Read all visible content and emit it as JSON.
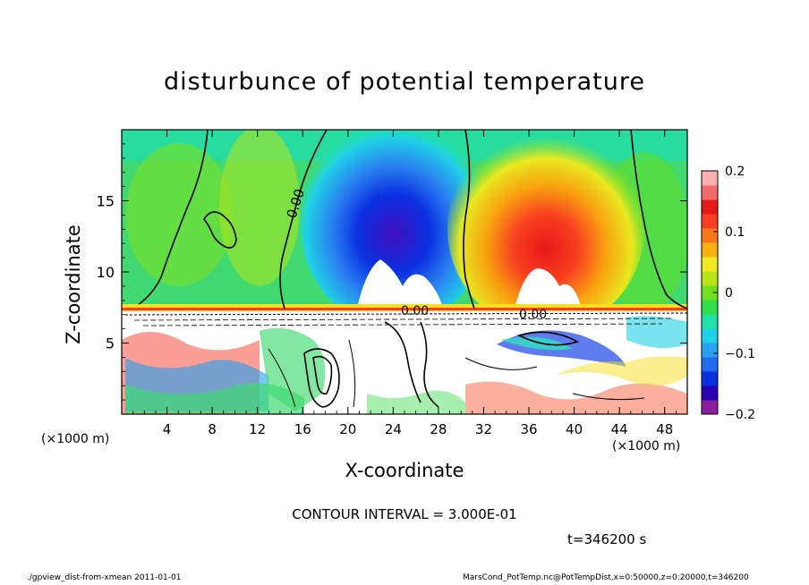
{
  "title": "disturbunce of potential temperature",
  "chart_data": {
    "type": "heatmap",
    "title": "disturbunce of potential temperature",
    "xlabel": "X-coordinate",
    "ylabel": "Z-coordinate",
    "x_unit": "(×1000 m)",
    "x_ticks": [
      "4",
      "8",
      "12",
      "16",
      "20",
      "24",
      "28",
      "32",
      "36",
      "40",
      "44",
      "48"
    ],
    "x_tick_values": [
      4,
      8,
      12,
      16,
      20,
      24,
      28,
      32,
      36,
      40,
      44,
      48
    ],
    "y_ticks": [
      "5",
      "10",
      "15"
    ],
    "y_tick_values": [
      5,
      10,
      15
    ],
    "xlim": [
      0,
      50
    ],
    "ylim": [
      0,
      20
    ],
    "colorbar": {
      "ticks": [
        "0.2",
        "0.1",
        "0",
        "−0.1",
        "−0.2"
      ],
      "tick_values": [
        0.2,
        0.1,
        0,
        -0.1,
        -0.2
      ],
      "range": [
        -0.2,
        0.2
      ],
      "colors": [
        "#8b1fa0",
        "#2a00b0",
        "#0a30e0",
        "#1f6cf0",
        "#2aa0f0",
        "#20d0e6",
        "#20e0a8",
        "#30e04a",
        "#70e020",
        "#b8e418",
        "#f0e820",
        "#f8b010",
        "#f87818",
        "#f84020",
        "#e81818",
        "#f06a6a",
        "#f8b0b0"
      ]
    },
    "contour_label": "0.00",
    "contour_interval": "CONTOUR INTERVAL = 3.000E-01",
    "time": "t=346200 s"
  },
  "footer": {
    "left": "./gpview_dist-from-xmean  2011-01-01",
    "right": "MarsCond_PotTemp.nc@PotTempDist,x=0:50000,z=0:20000,t=346200"
  }
}
